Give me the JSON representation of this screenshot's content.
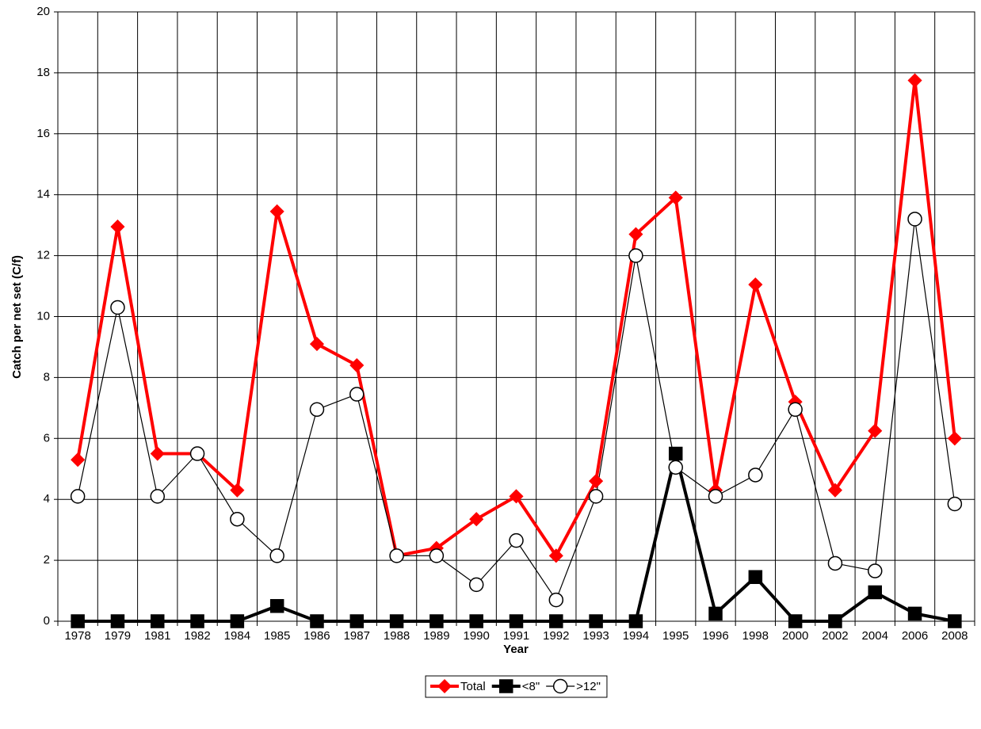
{
  "chart_data": {
    "type": "line",
    "x_label": "Year",
    "y_label": "Catch per net set (C/f)",
    "categories": [
      "1978",
      "1979",
      "1981",
      "1982",
      "1984",
      "1985",
      "1986",
      "1987",
      "1988",
      "1989",
      "1990",
      "1991",
      "1992",
      "1993",
      "1994",
      "1995",
      "1996",
      "1998",
      "2000",
      "2002",
      "2004",
      "2006",
      "2008"
    ],
    "series": [
      {
        "name": "Total",
        "color": "#ff0000",
        "marker": "diamond",
        "marker_fill": "#ff0000",
        "line_width": 4,
        "values": [
          5.3,
          12.95,
          5.5,
          5.5,
          4.3,
          13.45,
          9.1,
          8.4,
          2.15,
          2.4,
          3.35,
          4.1,
          2.15,
          4.6,
          12.7,
          13.9,
          4.3,
          11.05,
          7.2,
          4.3,
          6.25,
          17.75,
          6.0
        ]
      },
      {
        "name": "<8\"",
        "color": "#000000",
        "marker": "square",
        "marker_fill": "#000000",
        "line_width": 4,
        "values": [
          0,
          0,
          0,
          0,
          0,
          0.5,
          0,
          0,
          0,
          0,
          0,
          0,
          0,
          0,
          0,
          5.5,
          0.25,
          1.45,
          0,
          0,
          0.95,
          0.25,
          0
        ]
      },
      {
        "name": ">12\"",
        "color": "#000000",
        "marker": "circle",
        "marker_fill": "#ffffff",
        "line_width": 1.2,
        "values": [
          4.1,
          10.3,
          4.1,
          5.5,
          3.35,
          2.15,
          6.95,
          7.45,
          2.15,
          2.15,
          1.2,
          2.65,
          0.7,
          4.1,
          12.0,
          5.05,
          4.1,
          4.8,
          6.95,
          1.9,
          1.65,
          13.2,
          3.85
        ]
      }
    ],
    "ylim": [
      0,
      20
    ],
    "yticks": [
      0,
      2,
      4,
      6,
      8,
      10,
      12,
      14,
      16,
      18,
      20
    ],
    "grid": true,
    "legend": "bottom"
  }
}
